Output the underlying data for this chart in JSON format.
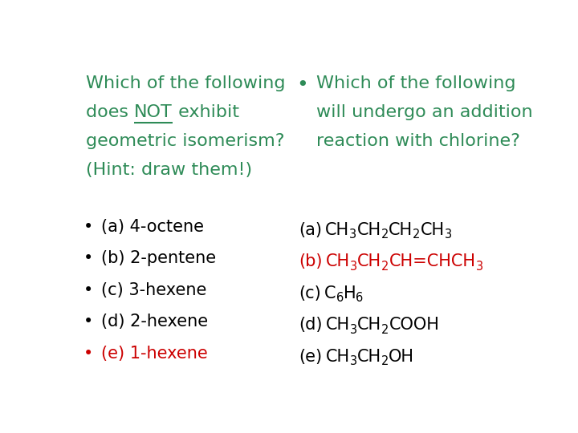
{
  "bg_color": "#ffffff",
  "left_title_lines": [
    "Which of the following",
    "does NOT exhibit",
    "geometric isomerism?",
    "(Hint: draw them!)"
  ],
  "left_title_color": "#2e8b57",
  "bullet_items_left": [
    {
      "text": "(a) 4-octene",
      "color": "#000000"
    },
    {
      "text": "(b) 2-pentene",
      "color": "#000000"
    },
    {
      "text": "(c) 3-hexene",
      "color": "#000000"
    },
    {
      "text": "(d) 2-hexene",
      "color": "#000000"
    },
    {
      "text": "(e) 1-hexene",
      "color": "#cc0000"
    }
  ],
  "right_title_lines": [
    "Which of the following",
    "will undergo an addition",
    "reaction with chlorine?"
  ],
  "right_title_color": "#2e8b57",
  "right_items": [
    {
      "label": "(a)",
      "formula": "CH3CH2CH2CH3",
      "color": "#000000"
    },
    {
      "label": "(b)",
      "formula": "CH3CH2CH=CHCH3",
      "color": "#cc0000"
    },
    {
      "label": "(c)",
      "formula": "C6H6",
      "color": "#000000"
    },
    {
      "label": "(d)",
      "formula": "CH3CH2COOH",
      "color": "#000000"
    },
    {
      "label": "(e)",
      "formula": "CH3CH2OH",
      "color": "#000000"
    }
  ],
  "font_size_title": 16,
  "font_size_bullets": 15,
  "font_size_right_items": 15
}
